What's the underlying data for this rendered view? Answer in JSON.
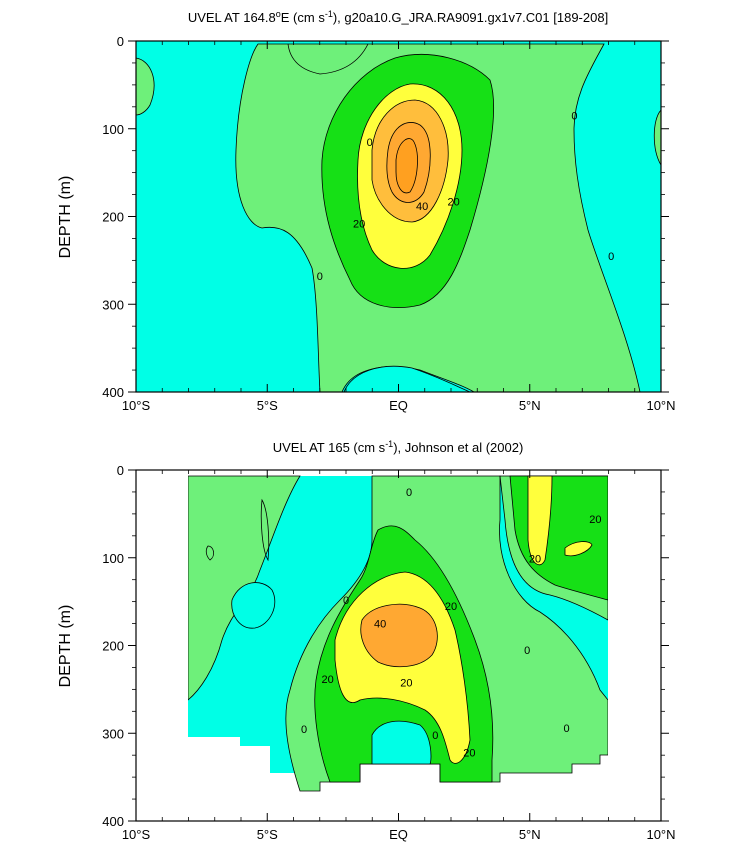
{
  "colors": {
    "c_neg": "#00ffe6",
    "c_0": "#6ef07a",
    "c_10": "#16e016",
    "c_20": "#ffff3c",
    "c_30": "#ffbe3c",
    "c_40": "#ffa832",
    "line": "#000000"
  },
  "chart_data": [
    {
      "type": "contour",
      "title": "UVEL AT 164.8°E (cm s-1), g20a10.G_JRA.RA9091.gx1v7.C01 [189-208]",
      "title_main": "UVEL AT 164.8",
      "title_deg": "o",
      "title_mid": "E (cm s",
      "title_sup": "-1",
      "title_end": "), g20a10.G_JRA.RA9091.gx1v7.C01 [189-208]",
      "ylabel": "DEPTH (m)",
      "x_ticks": [
        "10°S",
        "5°S",
        "EQ",
        "5°N",
        "10°N"
      ],
      "x_tick_values": [
        -10,
        -5,
        0,
        5,
        10
      ],
      "y_ticks": [
        "0",
        "100",
        "200",
        "300",
        "400"
      ],
      "y_tick_values": [
        0,
        100,
        200,
        300,
        400
      ],
      "xlim": [
        -10,
        10
      ],
      "ylim": [
        400,
        0
      ],
      "contour_levels": [
        0,
        10,
        20,
        30,
        40,
        50
      ],
      "contour_labels": [
        {
          "text": "0",
          "lat": -1.1,
          "depth": 115
        },
        {
          "text": "0",
          "lat": -3.0,
          "depth": 268
        },
        {
          "text": "0",
          "lat": 6.7,
          "depth": 85
        },
        {
          "text": "0",
          "lat": 8.1,
          "depth": 245
        },
        {
          "text": "20",
          "lat": -1.5,
          "depth": 208
        },
        {
          "text": "40",
          "lat": 0.9,
          "depth": 188
        },
        {
          "text": "20",
          "lat": 2.1,
          "depth": 183
        }
      ],
      "max_core": {
        "lat": 0.4,
        "depth": 155,
        "value": 50
      }
    },
    {
      "type": "contour",
      "title": "UVEL AT 165 (cm s-1), Johnson et al (2002)",
      "title_main": "UVEL AT 165 (cm s",
      "title_sup": "-1",
      "title_end": "), Johnson et al (2002)",
      "ylabel": "DEPTH (m)",
      "x_ticks": [
        "10°S",
        "5°S",
        "EQ",
        "5°N",
        "10°N"
      ],
      "x_tick_values": [
        -10,
        -5,
        0,
        5,
        10
      ],
      "y_ticks": [
        "0",
        "100",
        "200",
        "300",
        "400"
      ],
      "y_tick_values": [
        0,
        100,
        200,
        300,
        400
      ],
      "xlim": [
        -10,
        10
      ],
      "ylim": [
        400,
        0
      ],
      "data_lat_range": [
        -8,
        8
      ],
      "contour_levels": [
        0,
        20,
        40
      ],
      "contour_labels": [
        {
          "text": "0",
          "lat": 0.4,
          "depth": 25
        },
        {
          "text": "0",
          "lat": -2.0,
          "depth": 148
        },
        {
          "text": "0",
          "lat": -3.6,
          "depth": 295
        },
        {
          "text": "0",
          "lat": 1.4,
          "depth": 302
        },
        {
          "text": "0",
          "lat": 4.9,
          "depth": 205
        },
        {
          "text": "0",
          "lat": 6.4,
          "depth": 294
        },
        {
          "text": "40",
          "lat": -0.7,
          "depth": 175
        },
        {
          "text": "20",
          "lat": 2.0,
          "depth": 155
        },
        {
          "text": "20",
          "lat": -2.7,
          "depth": 238
        },
        {
          "text": "20",
          "lat": 0.3,
          "depth": 242
        },
        {
          "text": "20",
          "lat": 2.7,
          "depth": 322
        },
        {
          "text": "20",
          "lat": 5.2,
          "depth": 101
        },
        {
          "text": "20",
          "lat": 7.5,
          "depth": 56
        }
      ],
      "max_core": {
        "lat": 0.0,
        "depth": 190,
        "value": 40
      }
    }
  ]
}
